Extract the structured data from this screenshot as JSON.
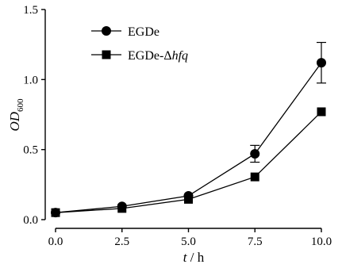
{
  "chart_data": {
    "type": "line",
    "xlabel": {
      "var": "t",
      "sep": " / ",
      "unit": "h"
    },
    "ylabel": {
      "base": "OD",
      "sub": "600"
    },
    "xlim": [
      0,
      10
    ],
    "ylim": [
      0,
      1.5
    ],
    "x_ticks": [
      "0.0",
      "2.5",
      "5.0",
      "7.5",
      "10.0"
    ],
    "y_ticks": [
      "0.0",
      "0.5",
      "1.0",
      "1.5"
    ],
    "grid": false,
    "legend_position": "top-left",
    "series": [
      {
        "name": "EGDe",
        "legend_base": "EGDe",
        "legend_italic": "",
        "marker": "circle",
        "color": "#000000",
        "x": [
          0,
          2.5,
          5,
          7.5,
          10
        ],
        "y": [
          0.05,
          0.095,
          0.17,
          0.47,
          1.12
        ],
        "error": [
          0.0,
          0.0,
          0.0,
          0.06,
          0.145
        ]
      },
      {
        "name": "EGDe-Δhfq",
        "legend_base": "EGDe-Δ",
        "legend_italic": "hfq",
        "marker": "square",
        "color": "#000000",
        "x": [
          0,
          2.5,
          5,
          7.5,
          10
        ],
        "y": [
          0.05,
          0.08,
          0.145,
          0.305,
          0.77
        ],
        "error": [
          0.0,
          0.0,
          0.0,
          0.0,
          0.0
        ]
      }
    ]
  }
}
